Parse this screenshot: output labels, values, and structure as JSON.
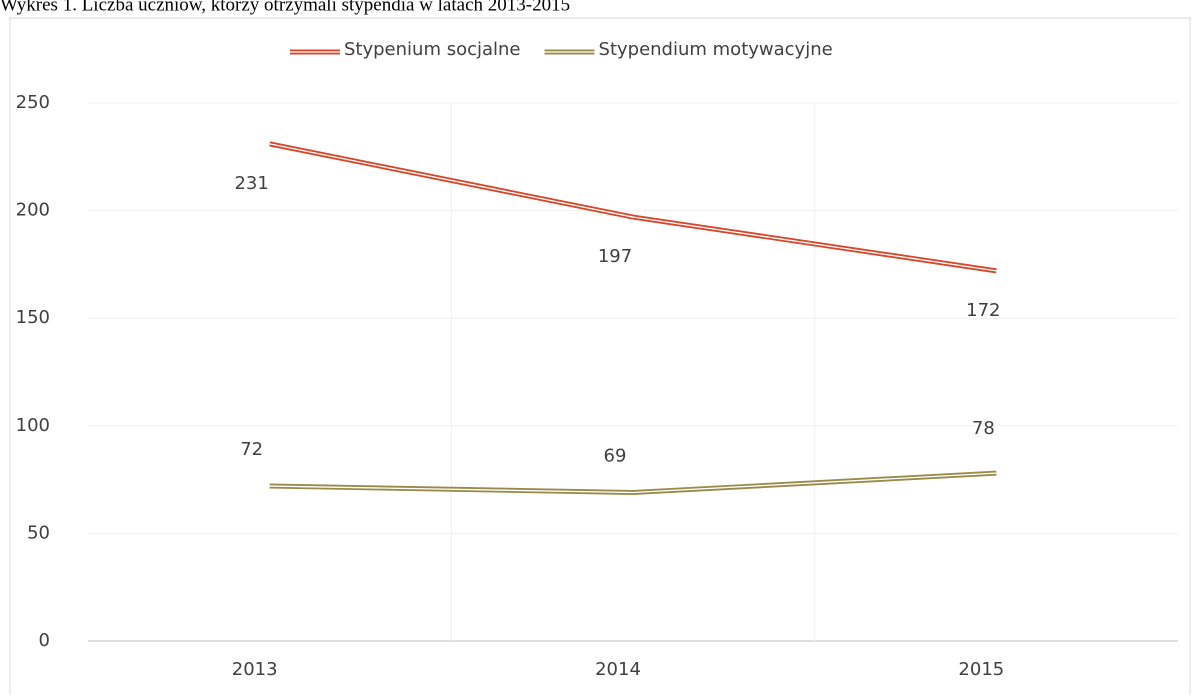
{
  "chart_data": {
    "type": "line",
    "title": "Wykres 1. Liczba uczniów, którzy otrzymali stypendia w latach 2013-2015",
    "categories": [
      "2013",
      "2014",
      "2015"
    ],
    "series": [
      {
        "name": "Stypenium socjalne",
        "color": "#d9472b",
        "values": [
          231,
          197,
          172
        ]
      },
      {
        "name": "Stypendium motywacyjne",
        "color": "#9a8a4a",
        "values": [
          72,
          69,
          78
        ]
      }
    ],
    "ylim": [
      0,
      250
    ],
    "yticks": [
      0,
      50,
      100,
      150,
      200,
      250
    ],
    "grid": true,
    "legend": "top"
  }
}
